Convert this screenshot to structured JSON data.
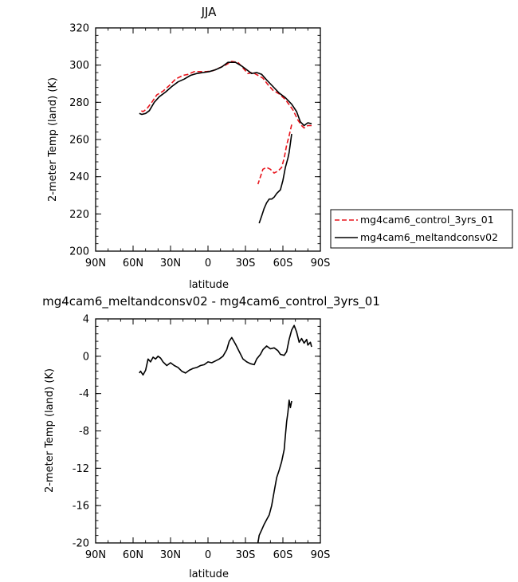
{
  "chart_data": [
    {
      "type": "line",
      "title": "JJA",
      "xlabel": "latitude",
      "ylabel": "2-meter Temp (land) (K)",
      "xlim": [
        90,
        -90
      ],
      "ylim": [
        200,
        320
      ],
      "xticks": [
        90,
        60,
        30,
        0,
        -30,
        -60,
        -90
      ],
      "xtick_labels": [
        "90N",
        "60N",
        "30N",
        "0",
        "30S",
        "60S",
        "90S"
      ],
      "yticks": [
        200,
        220,
        240,
        260,
        280,
        300,
        320
      ],
      "ytick_labels": [
        "200",
        "220",
        "240",
        "260",
        "280",
        "300",
        "320"
      ],
      "legend": "right",
      "series": [
        {
          "name": "mg4cam6_control_3yrs_01",
          "color": "#e8141c",
          "dash": true,
          "segments": [
            [
              [
                -83,
                267.5
              ],
              [
                -80,
                267.5
              ],
              [
                -77,
                266.2
              ],
              [
                -75,
                267.5
              ],
              [
                -72,
                270.5
              ],
              [
                -68,
                276
              ],
              [
                -62,
                281.5
              ],
              [
                -57,
                284.5
              ],
              [
                -52,
                286.5
              ],
              [
                -48,
                289.5
              ],
              [
                -44,
                293
              ],
              [
                -40,
                294.5
              ],
              [
                -36,
                296
              ],
              [
                -32,
                295.5
              ],
              [
                -28,
                298.5
              ],
              [
                -24,
                301.5
              ],
              [
                -19,
                302
              ],
              [
                -14,
                300
              ],
              [
                -9,
                298.5
              ],
              [
                -4,
                297
              ],
              [
                1,
                296.5
              ],
              [
                6,
                296.5
              ],
              [
                11,
                296.5
              ],
              [
                16,
                295
              ],
              [
                20,
                294.5
              ],
              [
                26,
                292.5
              ],
              [
                31,
                289
              ],
              [
                36,
                286
              ],
              [
                41,
                284
              ],
              [
                45,
                280
              ],
              [
                49,
                276.5
              ],
              [
                52,
                275
              ],
              [
                55,
                276
              ]
            ],
            [
              [
                -67,
                268
              ],
              [
                -65,
                262
              ],
              [
                -63,
                257
              ],
              [
                -61,
                250
              ],
              [
                -59,
                245
              ],
              [
                -56,
                243
              ],
              [
                -53,
                242
              ],
              [
                -50,
                244
              ],
              [
                -47,
                245
              ],
              [
                -44,
                244
              ],
              [
                -42,
                240
              ],
              [
                -40,
                236
              ]
            ]
          ]
        },
        {
          "name": "mg4cam6_meltandconsv02",
          "color": "#000000",
          "dash": false,
          "segments": [
            [
              [
                -83,
                268.5
              ],
              [
                -80,
                269
              ],
              [
                -77,
                267.5
              ],
              [
                -74,
                269.5
              ],
              [
                -71,
                275
              ],
              [
                -67,
                279
              ],
              [
                -62,
                282.5
              ],
              [
                -57,
                285
              ],
              [
                -52,
                288.5
              ],
              [
                -47,
                292
              ],
              [
                -43,
                295
              ],
              [
                -39,
                296
              ],
              [
                -35,
                295.5
              ],
              [
                -31,
                297.5
              ],
              [
                -27,
                299.5
              ],
              [
                -22,
                301.5
              ],
              [
                -16,
                301.5
              ],
              [
                -11,
                299
              ],
              [
                -6,
                297.5
              ],
              [
                -1,
                296.5
              ],
              [
                4,
                296
              ],
              [
                9,
                295.5
              ],
              [
                14,
                294.5
              ],
              [
                19,
                292.5
              ],
              [
                24,
                291
              ],
              [
                29,
                288.5
              ],
              [
                34,
                285.5
              ],
              [
                39,
                283
              ],
              [
                43,
                280
              ],
              [
                47,
                275.5
              ],
              [
                50,
                274
              ],
              [
                53,
                273.5
              ],
              [
                55,
                274
              ]
            ],
            [
              [
                -67,
                263
              ],
              [
                -66,
                258
              ],
              [
                -65,
                253
              ],
              [
                -64,
                250
              ],
              [
                -62,
                245
              ],
              [
                -60,
                238
              ],
              [
                -58,
                233
              ],
              [
                -55,
                231
              ],
              [
                -53,
                229
              ],
              [
                -51,
                228
              ],
              [
                -49,
                228
              ],
              [
                -47,
                226
              ],
              [
                -45,
                223
              ],
              [
                -43,
                219
              ],
              [
                -41,
                215
              ]
            ]
          ]
        }
      ]
    },
    {
      "type": "line",
      "title": "mg4cam6_meltandconsv02 - mg4cam6_control_3yrs_01",
      "xlabel": "latitude",
      "ylabel": "2-meter Temp (land) (K)",
      "xlim": [
        90,
        -90
      ],
      "ylim": [
        -20,
        4
      ],
      "xticks": [
        90,
        60,
        30,
        0,
        -30,
        -60,
        -90
      ],
      "xtick_labels": [
        "90N",
        "60N",
        "30N",
        "0",
        "30S",
        "60S",
        "90S"
      ],
      "yticks": [
        -20,
        -16,
        -12,
        -8,
        -4,
        0,
        4
      ],
      "ytick_labels": [
        "-20",
        "-16",
        "-12",
        "-8",
        "-4",
        "0",
        "4"
      ],
      "series": [
        {
          "color": "#000000",
          "dash": false,
          "segments": [
            [
              [
                -83,
                1
              ],
              [
                -82,
                1.5
              ],
              [
                -80,
                1.2
              ],
              [
                -79,
                1.8
              ],
              [
                -77,
                1.4
              ],
              [
                -75,
                1.9
              ],
              [
                -73,
                1.5
              ],
              [
                -71,
                2.6
              ],
              [
                -69,
                3.3
              ],
              [
                -67,
                2.8
              ],
              [
                -65,
                1.8
              ],
              [
                -63,
                0.5
              ],
              [
                -61,
                0.1
              ],
              [
                -58,
                0.2
              ],
              [
                -56,
                0.6
              ],
              [
                -53,
                0.9
              ],
              [
                -50,
                0.8
              ],
              [
                -47,
                1.1
              ],
              [
                -44,
                0.7
              ],
              [
                -42,
                0.2
              ],
              [
                -39,
                -0.3
              ],
              [
                -37,
                -0.9
              ],
              [
                -34,
                -0.8
              ],
              [
                -31,
                -0.6
              ],
              [
                -28,
                -0.3
              ],
              [
                -25,
                0.5
              ],
              [
                -22,
                1.3
              ],
              [
                -19,
                2.0
              ],
              [
                -17,
                1.6
              ],
              [
                -15,
                0.7
              ],
              [
                -12,
                0.0
              ],
              [
                -9,
                -0.3
              ],
              [
                -6,
                -0.5
              ],
              [
                -3,
                -0.7
              ],
              [
                0,
                -0.6
              ],
              [
                3,
                -0.9
              ],
              [
                6,
                -1.0
              ],
              [
                9,
                -1.2
              ],
              [
                12,
                -1.3
              ],
              [
                15,
                -1.5
              ],
              [
                18,
                -1.8
              ],
              [
                21,
                -1.6
              ],
              [
                24,
                -1.2
              ],
              [
                27,
                -1.0
              ],
              [
                30,
                -0.7
              ],
              [
                33,
                -1.0
              ],
              [
                36,
                -0.6
              ],
              [
                38,
                -0.2
              ],
              [
                40,
                0.0
              ],
              [
                42,
                -0.3
              ],
              [
                44,
                -0.1
              ],
              [
                46,
                -0.6
              ],
              [
                48,
                -0.3
              ],
              [
                50,
                -1.5
              ],
              [
                52,
                -2.0
              ],
              [
                54,
                -1.6
              ],
              [
                55,
                -1.8
              ]
            ],
            [
              [
                -67,
                -4.8
              ],
              [
                -66,
                -5.5
              ],
              [
                -65,
                -4.7
              ],
              [
                -64,
                -6.0
              ],
              [
                -63,
                -7.0
              ],
              [
                -62,
                -8.5
              ],
              [
                -61,
                -10.0
              ],
              [
                -59,
                -11.3
              ],
              [
                -57,
                -12.2
              ],
              [
                -55,
                -13.0
              ],
              [
                -53,
                -14.5
              ],
              [
                -51,
                -16.0
              ],
              [
                -49,
                -17.0
              ],
              [
                -47,
                -17.5
              ],
              [
                -45,
                -18.0
              ],
              [
                -43,
                -18.6
              ],
              [
                -41,
                -19.2
              ],
              [
                -40,
                -20.0
              ]
            ]
          ]
        }
      ]
    }
  ]
}
